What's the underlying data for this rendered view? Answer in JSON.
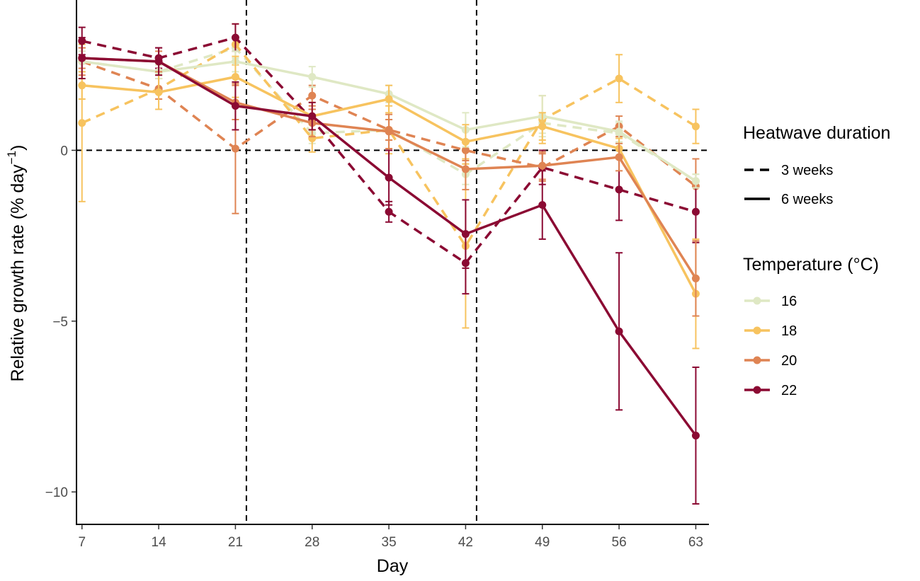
{
  "chart_data": {
    "type": "line",
    "xlabel": "Day",
    "ylabel_main": "Relative growth rate (% day",
    "ylabel_sup": "−1",
    "ylabel_close": ")",
    "x": [
      7,
      14,
      21,
      28,
      35,
      42,
      49,
      56,
      63
    ],
    "x_ticks": [
      "7",
      "14",
      "21",
      "28",
      "35",
      "42",
      "49",
      "56",
      "63"
    ],
    "y_ticks": [
      {
        "value": 0,
        "label": "0"
      },
      {
        "value": -5,
        "label": "−5"
      },
      {
        "value": -10,
        "label": "−10"
      }
    ],
    "xlim": [
      6.5,
      64.2
    ],
    "ylim": [
      -10.95,
      4.4
    ],
    "hlines": [
      0
    ],
    "vlines": [
      22,
      43
    ],
    "colors": {
      "16": "#dfe8c4",
      "18": "#f7c35f",
      "20": "#df8453",
      "22": "#8b0a33"
    },
    "legend": {
      "duration_title": "Heatwave duration",
      "duration_items": [
        {
          "label": "3 weeks",
          "style": "dashed"
        },
        {
          "label": "6 weeks",
          "style": "solid"
        }
      ],
      "temperature_title": "Temperature (°C)",
      "temperature_items": [
        {
          "label": "16",
          "temp": "16"
        },
        {
          "label": "18",
          "temp": "18"
        },
        {
          "label": "20",
          "temp": "20"
        },
        {
          "label": "22",
          "temp": "22"
        }
      ]
    },
    "series": [
      {
        "name": "16 °C, 3 weeks",
        "temp": "16",
        "duration": "3 weeks",
        "values": [
          2.6,
          2.3,
          3.0,
          0.5,
          0.6,
          -0.7,
          0.8,
          0.5,
          -0.9
        ],
        "errors": [
          0.3,
          0.2,
          0.3,
          0.3,
          0.3,
          0.3,
          0.3,
          0.3,
          0.2
        ]
      },
      {
        "name": "18 °C, 3 weeks",
        "temp": "18",
        "duration": "3 weeks",
        "values": [
          0.8,
          1.8,
          3.1,
          0.35,
          0.6,
          -2.8,
          0.9,
          2.1,
          0.7
        ],
        "errors": [
          2.3,
          0.3,
          0.6,
          0.4,
          0.7,
          2.4,
          0.7,
          0.7,
          0.5
        ]
      },
      {
        "name": "20 °C, 3 weeks",
        "temp": "20",
        "duration": "3 weeks",
        "values": [
          2.6,
          1.8,
          0.05,
          1.6,
          0.6,
          0.0,
          -0.5,
          0.7,
          -1.05
        ],
        "errors": [
          0.4,
          0.3,
          1.9,
          0.3,
          0.3,
          0.3,
          0.4,
          0.3,
          0.8
        ]
      },
      {
        "name": "22 °C, 3 weeks",
        "temp": "22",
        "duration": "3 weeks",
        "values": [
          3.2,
          2.7,
          3.3,
          0.9,
          -1.8,
          -3.3,
          -0.5,
          -1.15,
          -1.8
        ],
        "errors": [
          0.4,
          0.3,
          0.4,
          0.3,
          0.3,
          0.9,
          0.5,
          0.9,
          0.9
        ]
      },
      {
        "name": "16 °C, 6 weeks",
        "temp": "16",
        "duration": "6 weeks",
        "values": [
          2.6,
          2.3,
          2.6,
          2.15,
          1.65,
          0.6,
          1.0,
          0.55,
          -0.9
        ],
        "errors": [
          0.3,
          0.2,
          0.3,
          0.3,
          0.25,
          0.5,
          0.6,
          0.3,
          0.2
        ]
      },
      {
        "name": "18 °C, 6 weeks",
        "temp": "18",
        "duration": "6 weeks",
        "values": [
          1.9,
          1.7,
          2.15,
          1.0,
          1.5,
          0.25,
          0.7,
          0.05,
          -4.2
        ],
        "errors": [
          0.4,
          0.5,
          0.6,
          0.4,
          0.4,
          0.5,
          0.4,
          0.3,
          1.6
        ]
      },
      {
        "name": "20 °C, 6 weeks",
        "temp": "20",
        "duration": "6 weeks",
        "values": [
          2.7,
          2.6,
          1.4,
          0.8,
          0.55,
          -0.55,
          -0.45,
          -0.2,
          -3.75
        ],
        "errors": [
          0.3,
          0.3,
          0.5,
          0.4,
          0.5,
          0.6,
          0.4,
          0.4,
          1.1
        ]
      },
      {
        "name": "22 °C, 6 weeks",
        "temp": "22",
        "duration": "6 weeks",
        "values": [
          2.7,
          2.6,
          1.3,
          1.0,
          -0.8,
          -2.45,
          -1.6,
          -5.3,
          -8.35
        ],
        "errors": [
          0.6,
          0.4,
          0.7,
          0.4,
          0.8,
          1.0,
          1.0,
          2.3,
          2.0
        ]
      }
    ]
  }
}
